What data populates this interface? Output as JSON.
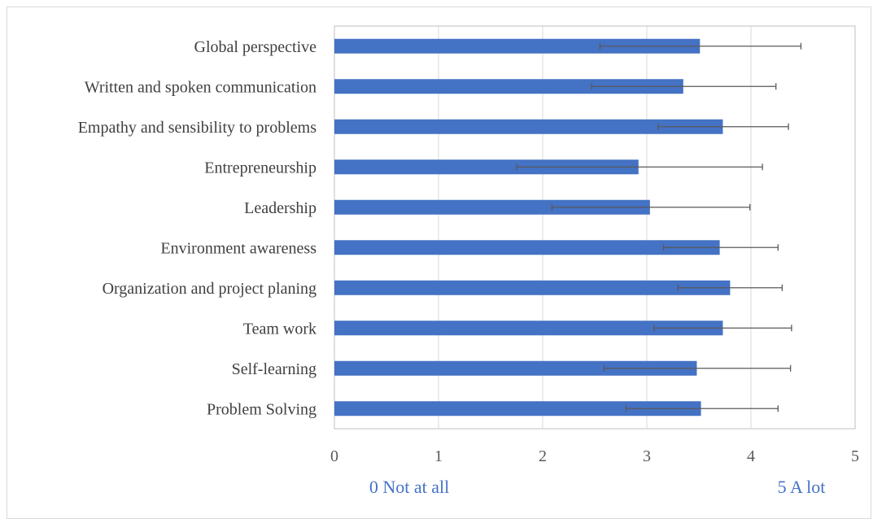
{
  "chart_data": {
    "type": "bar",
    "orientation": "horizontal",
    "categories": [
      "Global perspective",
      "Written and spoken communication",
      "Empathy and sensibility to problems",
      "Entrepreneurship",
      "Leadership",
      "Environment awareness",
      "Organization and project planing",
      "Team work",
      "Self-learning",
      "Problem Solving"
    ],
    "series": [
      {
        "values": [
          3.51,
          3.35,
          3.73,
          2.92,
          3.03,
          3.7,
          3.8,
          3.73,
          3.48,
          3.52
        ],
        "error_low": [
          2.55,
          2.47,
          3.11,
          1.75,
          2.09,
          3.16,
          3.3,
          3.07,
          2.59,
          2.8
        ],
        "error_high": [
          4.48,
          4.24,
          4.36,
          4.11,
          3.99,
          4.26,
          4.3,
          4.39,
          4.38,
          4.26
        ],
        "color": "#4472c4"
      }
    ],
    "xlim": [
      0,
      5
    ],
    "xticks": [
      "0",
      "1",
      "2",
      "3",
      "4",
      "5"
    ],
    "grid": "vertical",
    "title": "",
    "xlabel": "",
    "ylabel": "",
    "annotations": {
      "low": "0 Not at all",
      "high": "5 A lot"
    }
  }
}
